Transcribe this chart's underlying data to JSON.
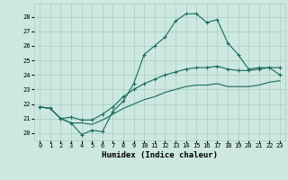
{
  "title": "",
  "xlabel": "Humidex (Indice chaleur)",
  "ylabel": "",
  "bg_color": "#cce8e0",
  "line_color": "#1a6b5a",
  "grid_color": "#aaccc4",
  "xlim": [
    -0.5,
    23.5
  ],
  "ylim": [
    19.5,
    28.9
  ],
  "yticks": [
    20,
    21,
    22,
    23,
    24,
    25,
    26,
    27,
    28
  ],
  "xticks": [
    0,
    1,
    2,
    3,
    4,
    5,
    6,
    7,
    8,
    9,
    10,
    11,
    12,
    13,
    14,
    15,
    16,
    17,
    18,
    19,
    20,
    21,
    22,
    23
  ],
  "series": [
    {
      "x": [
        0,
        1,
        2,
        3,
        4,
        5,
        6,
        7,
        8,
        9,
        10,
        11,
        12,
        13,
        14,
        15,
        16,
        17,
        18,
        19,
        20,
        21,
        22,
        23
      ],
      "y": [
        21.8,
        21.7,
        21.0,
        20.7,
        19.9,
        20.2,
        20.1,
        21.5,
        22.2,
        23.4,
        25.4,
        26.0,
        26.6,
        27.7,
        28.2,
        28.2,
        27.6,
        27.8,
        26.2,
        25.4,
        24.4,
        24.5,
        24.5,
        24.0
      ],
      "marker": "+"
    },
    {
      "x": [
        0,
        1,
        2,
        3,
        4,
        5,
        6,
        7,
        8,
        9,
        10,
        11,
        12,
        13,
        14,
        15,
        16,
        17,
        18,
        19,
        20,
        21,
        22,
        23
      ],
      "y": [
        21.8,
        21.7,
        21.0,
        21.1,
        20.9,
        20.9,
        21.3,
        21.8,
        22.5,
        23.0,
        23.4,
        23.7,
        24.0,
        24.2,
        24.4,
        24.5,
        24.5,
        24.6,
        24.4,
        24.3,
        24.3,
        24.4,
        24.5,
        24.5
      ],
      "marker": "+"
    },
    {
      "x": [
        0,
        1,
        2,
        3,
        4,
        5,
        6,
        7,
        8,
        9,
        10,
        11,
        12,
        13,
        14,
        15,
        16,
        17,
        18,
        19,
        20,
        21,
        22,
        23
      ],
      "y": [
        21.8,
        21.7,
        21.0,
        20.7,
        20.7,
        20.6,
        20.9,
        21.3,
        21.7,
        22.0,
        22.3,
        22.5,
        22.8,
        23.0,
        23.2,
        23.3,
        23.3,
        23.4,
        23.2,
        23.2,
        23.2,
        23.3,
        23.5,
        23.6
      ],
      "marker": null
    }
  ]
}
